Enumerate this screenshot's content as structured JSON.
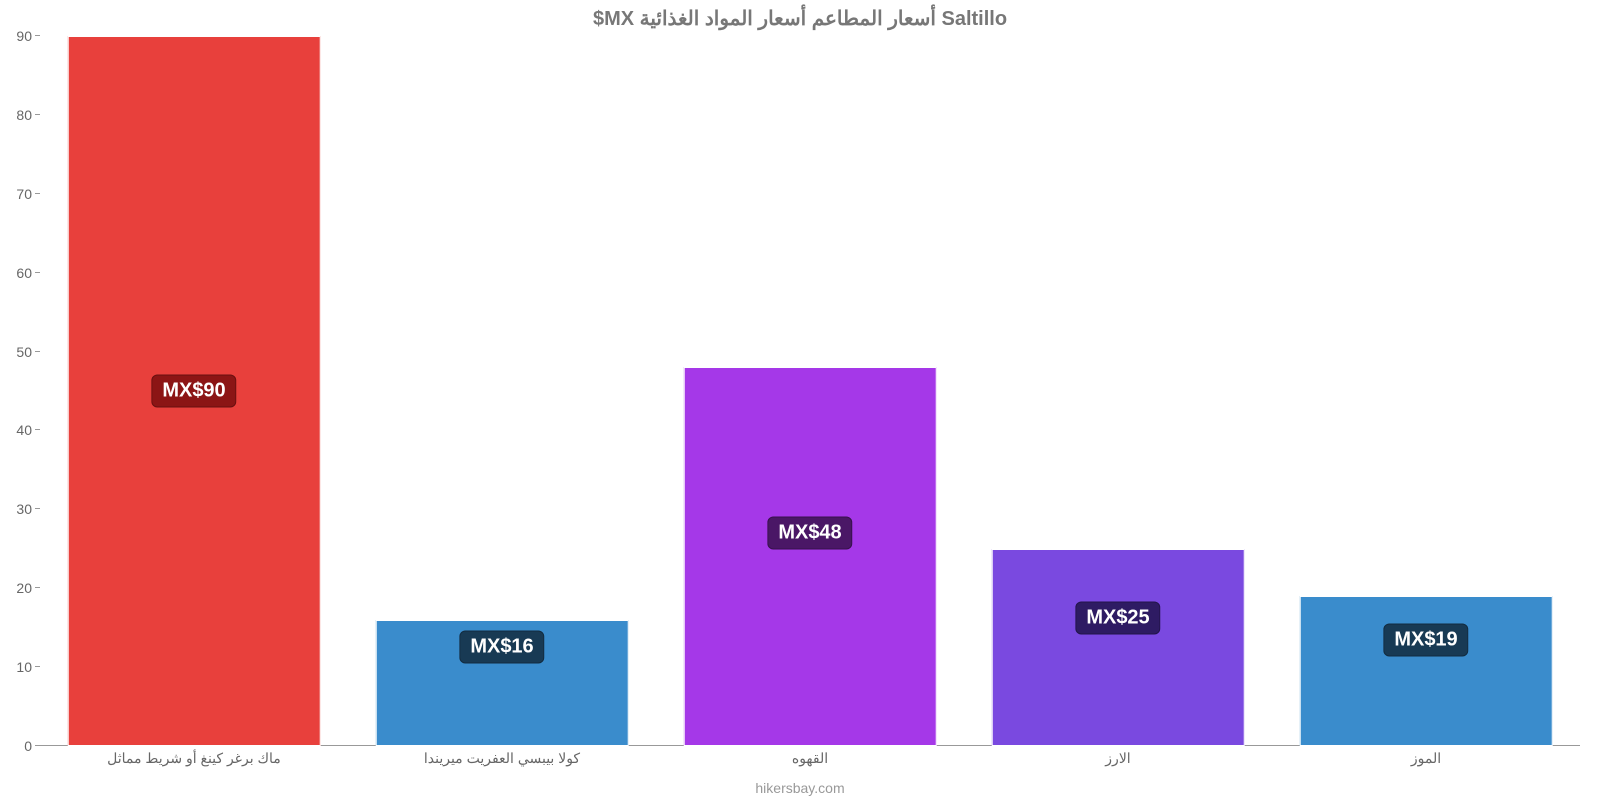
{
  "chart": {
    "type": "bar",
    "title": "Saltillo أسعار المطاعم أسعار المواد الغذائية MX$",
    "title_color": "#777777",
    "title_fontsize": 20,
    "background_color": "#ffffff",
    "attribution": "hikersbay.com",
    "attribution_color": "#999999",
    "ylim": [
      0,
      90
    ],
    "ytick_step": 10,
    "yticks": [
      0,
      10,
      20,
      30,
      40,
      50,
      60,
      70,
      80,
      90
    ],
    "axis_color": "#999999",
    "axis_label_color": "#666666",
    "axis_fontsize": 14,
    "bar_width_pct": 82,
    "value_label_fontsize": 20,
    "value_label_text_color": "#ffffff",
    "categories": [
      "ماك برغر كينغ أو شريط مماثل",
      "كولا بيبسي العفريت ميريندا",
      "القهوه",
      "الارز",
      "الموز"
    ],
    "values": [
      90,
      16,
      48,
      25,
      19
    ],
    "value_labels": [
      "MX$90",
      "MX$16",
      "MX$48",
      "MX$25",
      "MX$19"
    ],
    "bar_colors": [
      "#e8403c",
      "#3a8ccc",
      "#a538e8",
      "#7a49e0",
      "#3a8ccc"
    ],
    "label_bg_colors": [
      "#8c1515",
      "#183a54",
      "#4a1766",
      "#2e1b63",
      "#183a54"
    ],
    "label_y_positions_pct": [
      50,
      14,
      30,
      18,
      15
    ]
  }
}
